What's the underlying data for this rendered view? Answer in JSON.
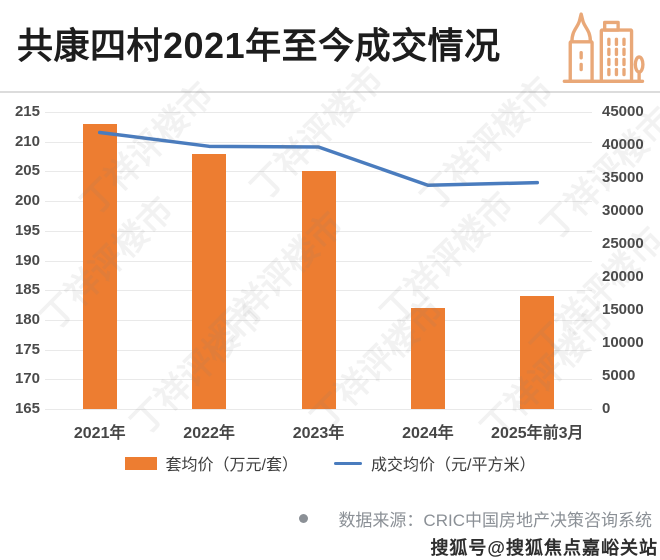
{
  "header": {
    "title": "共康四村2021年至今成交情况",
    "icon": "buildings-icon",
    "icon_color": "#E9A878"
  },
  "chart_data": {
    "type": "bar+line combo",
    "categories": [
      "2021年",
      "2022年",
      "2023年",
      "2024年",
      "2025年前3月"
    ],
    "series": [
      {
        "name": "套均价（万元/套）",
        "type": "bar",
        "axis": "left",
        "color": "#ED7D31",
        "values": [
          213,
          208,
          205,
          182,
          184
        ]
      },
      {
        "name": "成交均价（元/平方米）",
        "type": "line",
        "axis": "right",
        "color": "#4A7CBE",
        "values": [
          41900,
          39800,
          39700,
          33900,
          34300
        ]
      }
    ],
    "left_axis": {
      "min": 165,
      "max": 215,
      "step": 5,
      "ticks": [
        215,
        210,
        205,
        200,
        195,
        190,
        185,
        180,
        175,
        170,
        165
      ]
    },
    "right_axis": {
      "min": 0,
      "max": 45000,
      "step": 5000,
      "ticks": [
        45000,
        40000,
        35000,
        30000,
        25000,
        20000,
        15000,
        10000,
        5000,
        0
      ]
    },
    "grid": true,
    "legend_position": "bottom"
  },
  "watermark_text": "丁祥评楼市",
  "source": {
    "text": "数据来源：CRIC中国房地产决策咨询系统"
  },
  "footer": {
    "watermark": "搜狐号@搜狐焦点嘉峪关站"
  }
}
